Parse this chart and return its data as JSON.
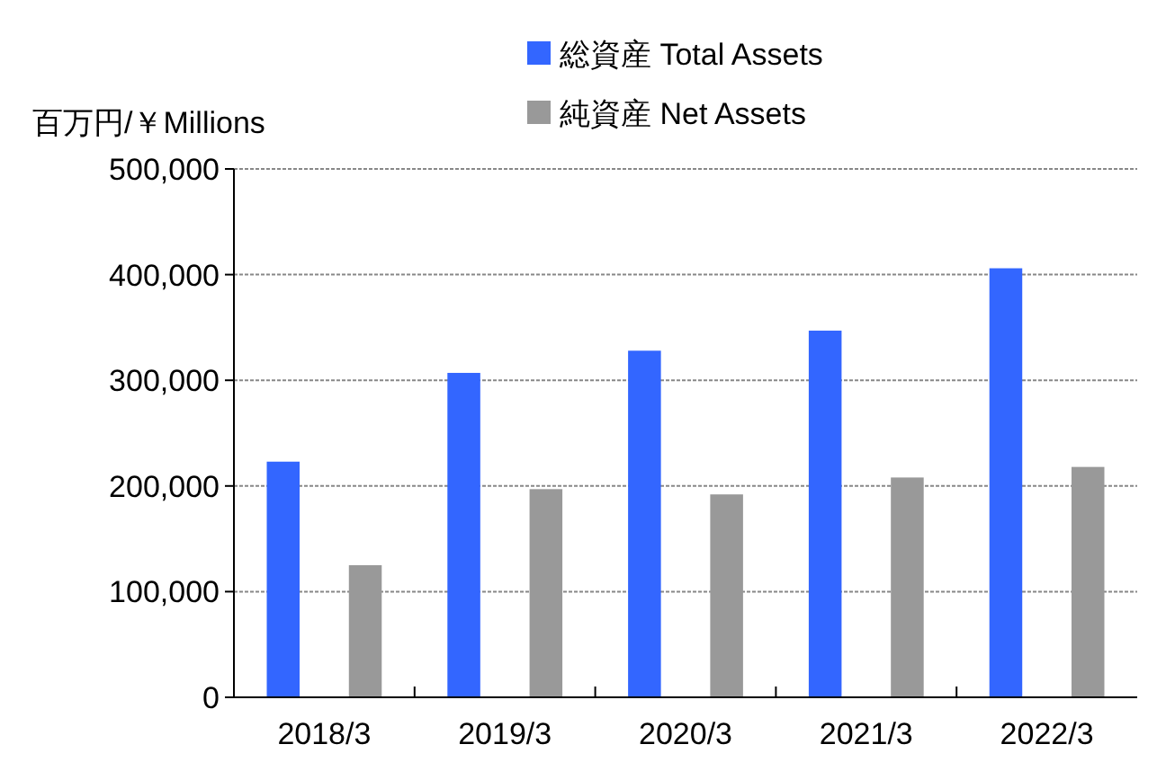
{
  "chart_data": {
    "type": "bar",
    "ylabel": "百万円/￥Millions",
    "categories": [
      "2018/3",
      "2019/3",
      "2020/3",
      "2021/3",
      "2022/3"
    ],
    "series": [
      {
        "name": "総資産 Total Assets",
        "color": "#3366ff",
        "values": [
          223000,
          307000,
          328000,
          347000,
          406000
        ]
      },
      {
        "name": "純資産 Net Assets",
        "color": "#999999",
        "values": [
          125000,
          197000,
          192000,
          208000,
          218000
        ]
      }
    ],
    "ylim": [
      0,
      500000
    ],
    "yticks": [
      {
        "value": 0,
        "label": "0"
      },
      {
        "value": 100000,
        "label": "100,000"
      },
      {
        "value": 200000,
        "label": "200,000"
      },
      {
        "value": 300000,
        "label": "300,000"
      },
      {
        "value": 400000,
        "label": "400,000"
      },
      {
        "value": 500000,
        "label": "500,000"
      }
    ],
    "grid": "y",
    "legend": "top"
  }
}
